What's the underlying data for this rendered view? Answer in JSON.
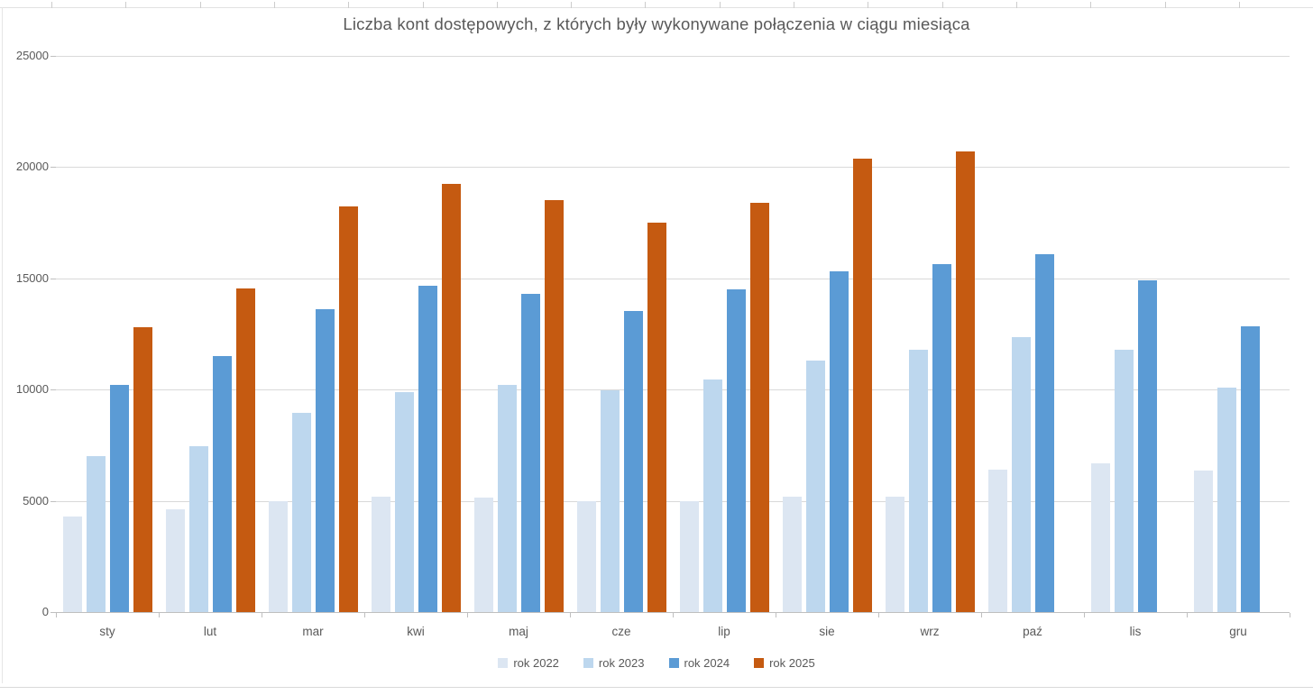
{
  "chart_data": {
    "type": "bar",
    "title": "Liczba kont dostępowych, z których były wykonywane połączenia w ciągu miesiąca",
    "categories": [
      "sty",
      "lut",
      "mar",
      "kwi",
      "maj",
      "cze",
      "lip",
      "sie",
      "wrz",
      "paź",
      "lis",
      "gru"
    ],
    "series": [
      {
        "name": "rok 2022",
        "color": "#DCE6F2",
        "values": [
          4300,
          4600,
          5000,
          5200,
          5150,
          5000,
          5000,
          5200,
          5200,
          6400,
          6700,
          6350
        ]
      },
      {
        "name": "rok 2023",
        "color": "#BDD7EE",
        "values": [
          7000,
          7450,
          8950,
          9900,
          10200,
          9950,
          10450,
          11300,
          11800,
          12350,
          11800,
          10100
        ]
      },
      {
        "name": "rok 2024",
        "color": "#5B9BD5",
        "values": [
          10200,
          11500,
          13600,
          14650,
          14300,
          13550,
          14500,
          15300,
          15650,
          16100,
          14900,
          12850
        ]
      },
      {
        "name": "rok 2025",
        "color": "#C55A11",
        "values": [
          12800,
          14550,
          18250,
          19250,
          18500,
          17500,
          18400,
          20400,
          20700,
          null,
          null,
          null
        ]
      }
    ],
    "xlabel": "",
    "ylabel": "",
    "ylim": [
      0,
      25000
    ],
    "ytick_step": 5000,
    "grid": true,
    "legend_position": "bottom",
    "colors": {
      "title_text": "#595959",
      "axis_text": "#595959",
      "gridline": "#d9d9d9",
      "axis_line": "#bfbfbf",
      "background": "#ffffff"
    }
  }
}
